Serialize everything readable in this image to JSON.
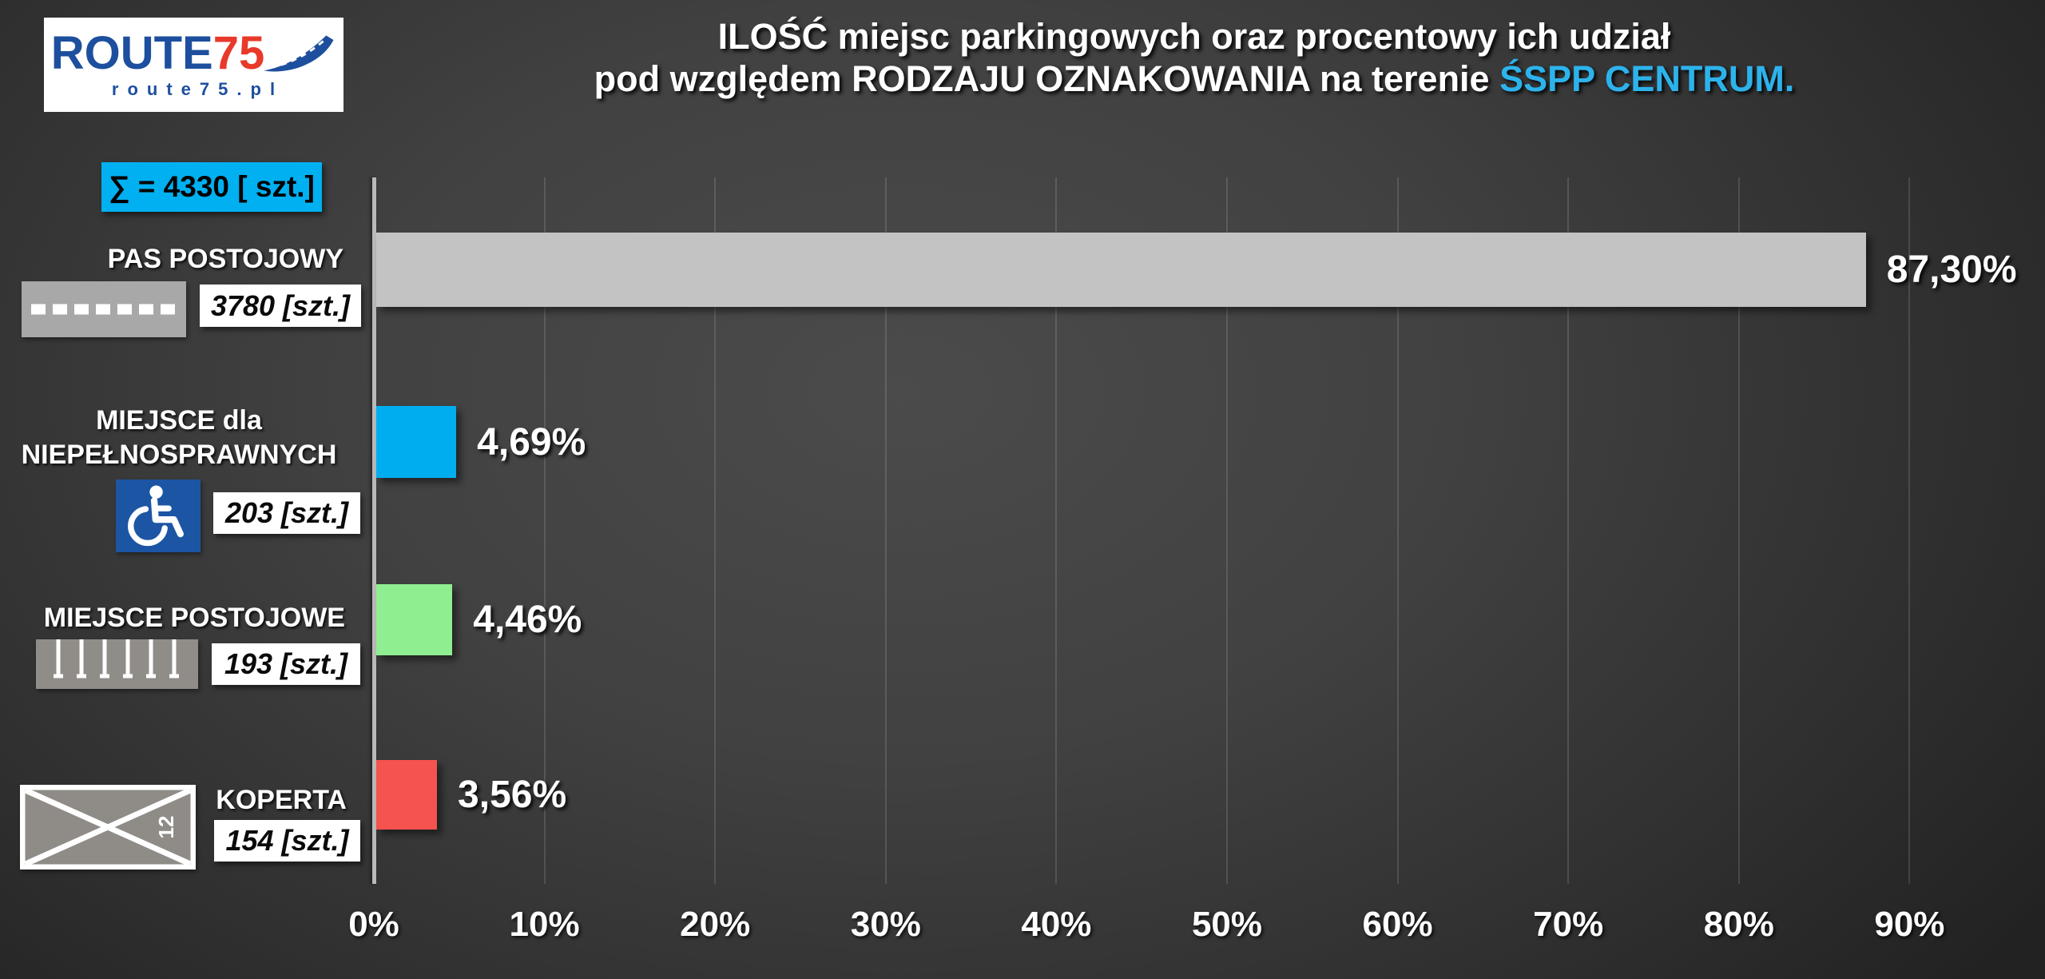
{
  "logo": {
    "brand_route": "ROUTE",
    "brand_75": "75",
    "domain": "route75.pl"
  },
  "title": {
    "line1": "ILOŚĆ miejsc parkingowych oraz procentowy ich udział",
    "line2_prefix": "pod względem RODZAJU OZNAKOWANIA na terenie ",
    "line2_accent": "ŚSPP CENTRUM."
  },
  "sum_badge": {
    "label": "∑ = 4330 [ szt.]"
  },
  "chart_data": {
    "type": "bar",
    "orientation": "horizontal",
    "title": "ILOŚĆ miejsc parkingowych oraz procentowy ich udział pod względem RODZAJU OZNAKOWANIA na terenie ŚSPP CENTRUM.",
    "total": 4330,
    "unit": "szt.",
    "categories": [
      "PAS POSTOJOWY",
      "MIEJSCE dla\nNIEPEŁNOSPRAWNYCH",
      "MIEJSCE POSTOJOWE",
      "KOPERTA"
    ],
    "values": [
      87.3,
      4.69,
      4.46,
      3.56
    ],
    "value_labels": [
      "87,30%",
      "4,69%",
      "4,46%",
      "3,56%"
    ],
    "counts": [
      3780,
      203,
      193,
      154
    ],
    "count_labels": [
      "3780 [szt.]",
      "203 [szt.]",
      "193 [szt.]",
      "154 [szt.]"
    ],
    "bar_colors": [
      "#c3c3c3",
      "#00aeef",
      "#8fee8f",
      "#f5534f"
    ],
    "x_ticks": [
      "0%",
      "10%",
      "20%",
      "30%",
      "40%",
      "50%",
      "60%",
      "70%",
      "80%",
      "90%"
    ],
    "xlim": [
      0,
      93
    ],
    "grid": true,
    "legend_position": "none",
    "icons": [
      "road-lane-dashed",
      "wheelchair",
      "parking-bays",
      "koperta-cross"
    ],
    "koperta_number": "12"
  },
  "colors": {
    "accent_cyan": "#00b0f0",
    "title_accent": "#2db3ec",
    "bar_gray": "#c3c3c3",
    "bar_blue": "#00aeef",
    "bar_green": "#8fee8f",
    "bar_red": "#f5534f",
    "logo_blue": "#1d4f9e",
    "logo_red": "#e8392b",
    "wheelchair_bg": "#1c55a4"
  }
}
